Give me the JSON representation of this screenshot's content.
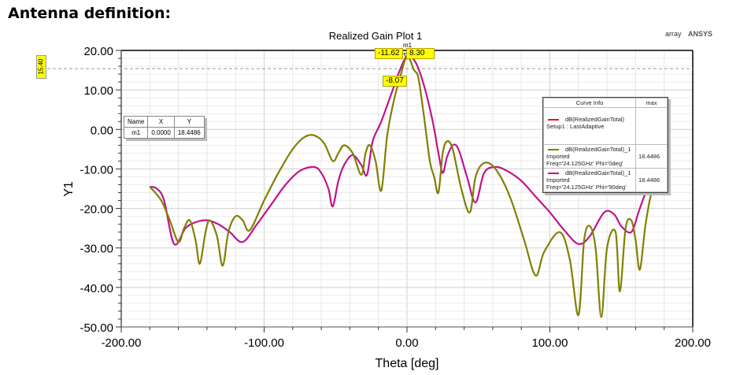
{
  "page": {
    "heading": "Antenna definition:",
    "plot_title": "Realized Gain Plot 1",
    "project_label": "array",
    "brand": "ANSYS"
  },
  "markers": {
    "table_headers": [
      "Name",
      "X",
      "Y"
    ],
    "rows": [
      {
        "name": "m1",
        "x": "0.0000",
        "y": "18.4486"
      }
    ],
    "m1_label": "m1",
    "ref_line_value": "15.40",
    "beamwidth_labels": {
      "left": "-11.62",
      "right": "8.30",
      "lower": "-8.07"
    }
  },
  "legend": {
    "header_info": "Curve Info",
    "header_max": "max",
    "entries": [
      {
        "name": "dB(RealizedGainTotal)",
        "line2": "Setup1 : LastAdaptive",
        "line3": "",
        "max": "",
        "color": "#d42020"
      },
      {
        "name": "dB(RealizedGainTotal)_1",
        "line2": "Imported",
        "line3": "Freq='24.125GHz' Phi='0deg'",
        "max": "18.4486",
        "color": "#808000"
      },
      {
        "name": "dB(RealizedGainTotal)_1",
        "line2": "Imported",
        "line3": "Freq='24.125GHz' Phi='90deg'",
        "max": "18.4486",
        "color": "#c0148c"
      }
    ]
  },
  "chart_data": {
    "type": "line",
    "title": "Realized Gain Plot 1",
    "xlabel": "Theta [deg]",
    "ylabel": "Y1",
    "xlim": [
      -200,
      200
    ],
    "ylim": [
      -50,
      20
    ],
    "xticks": [
      "-200.00",
      "-100.00",
      "0.00",
      "100.00",
      "200.00"
    ],
    "yticks": [
      "20.00",
      "10.00",
      "0.00",
      "-10.00",
      "-20.00",
      "-30.00",
      "-40.00",
      "-50.00"
    ],
    "grid": true,
    "legend_position": "upper right",
    "series": [
      {
        "name": "dB(RealizedGainTotal)_1 Imported Freq='24.125GHz' Phi='0deg'",
        "color": "#808000",
        "x": [
          -180,
          -172,
          -166,
          -160,
          -156,
          -152,
          -148,
          -145,
          -141,
          -138,
          -133,
          -129,
          -125,
          -120,
          -115,
          -110,
          -100,
          -90,
          -80,
          -72,
          -65,
          -58,
          -52,
          -48,
          -44,
          -38,
          -32,
          -29,
          -26,
          -22,
          -18,
          -14,
          -10,
          -5,
          0,
          5,
          8,
          12,
          16,
          19,
          22,
          25,
          28,
          32,
          38,
          44,
          48,
          54,
          62,
          72,
          82,
          90,
          96,
          107,
          114,
          120,
          124,
          128,
          132,
          136,
          140,
          146,
          149,
          153,
          157,
          160,
          163,
          167,
          172,
          180
        ],
        "y": [
          -14.5,
          -18,
          -23,
          -28.5,
          -25,
          -23,
          -28,
          -34,
          -26,
          -23,
          -27,
          -34.5,
          -26,
          -22,
          -23,
          -25.5,
          -18,
          -11,
          -5,
          -2,
          -1.5,
          -3.5,
          -8,
          -6,
          -4,
          -6,
          -11.5,
          -6,
          -4,
          -8,
          -15.5,
          -2,
          6,
          13,
          18.45,
          15,
          13,
          3,
          -8,
          -12,
          -16,
          -6,
          -3,
          -5,
          -15,
          -21,
          -12,
          -8.5,
          -10,
          -17,
          -28,
          -37,
          -31,
          -26,
          -33,
          -47,
          -28,
          -24.5,
          -30,
          -47.5,
          -30,
          -26,
          -41,
          -25,
          -23,
          -28,
          -35.5,
          -24,
          -15,
          -10
        ]
      },
      {
        "name": "dB(RealizedGainTotal)_1 Imported Freq='24.125GHz' Phi='90deg'",
        "color": "#c0148c",
        "x": [
          -180,
          -175,
          -170,
          -163,
          -155,
          -148,
          -140,
          -132,
          -124,
          -115,
          -105,
          -95,
          -85,
          -75,
          -65,
          -60,
          -55,
          -52,
          -48,
          -44,
          -38,
          -32,
          -28,
          -24,
          -18,
          -10,
          -5,
          0,
          6,
          12,
          18,
          22,
          25,
          28,
          32,
          36,
          42,
          48,
          54,
          62,
          70,
          80,
          90,
          100,
          110,
          120,
          128,
          138,
          145,
          150,
          157,
          162,
          166,
          170,
          176
        ],
        "y": [
          -14.5,
          -15,
          -18,
          -29,
          -25,
          -23.5,
          -23,
          -24,
          -26,
          -28.5,
          -24,
          -19,
          -14,
          -10.5,
          -9.5,
          -11,
          -15,
          -19.5,
          -13,
          -9,
          -6.5,
          -9,
          -11.5,
          -3,
          2,
          10,
          15,
          18.45,
          17,
          11,
          2,
          -6,
          -11,
          -7,
          -4,
          -5,
          -12,
          -18.5,
          -11,
          -9.5,
          -10.5,
          -13,
          -17,
          -21,
          -25.5,
          -29,
          -27,
          -21,
          -21.5,
          -24.5,
          -26,
          -21,
          -17,
          -14,
          -10
        ]
      }
    ],
    "annotations": [
      {
        "type": "marker",
        "label": "m1",
        "x": 0,
        "y": 18.4486
      },
      {
        "type": "hline",
        "y": 15.4,
        "label": "15.40"
      },
      {
        "type": "beamwidth",
        "labels": [
          "-11.62",
          "8.30",
          "-8.07"
        ]
      }
    ]
  }
}
